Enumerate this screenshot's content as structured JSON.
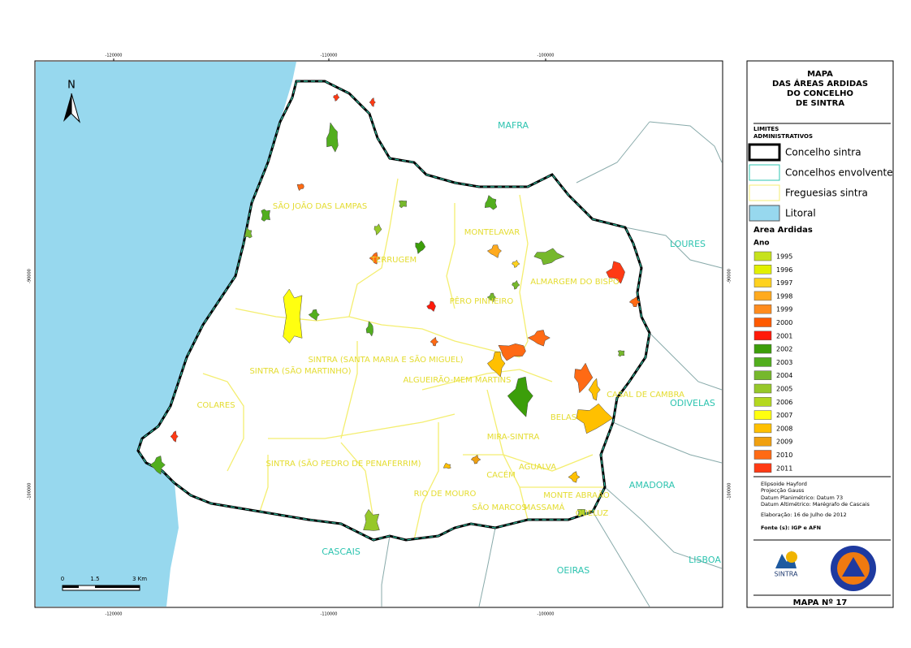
{
  "map": {
    "coords": {
      "x_labels": [
        "-120000",
        "-110000",
        "-100000"
      ],
      "y_labels": [
        "-90000",
        "-100000"
      ]
    },
    "north": "N",
    "scale": [
      "0",
      "1.5",
      "3 Km"
    ],
    "places": [
      "MAFRA",
      "LOURES",
      "ODIVELAS",
      "AMADORA",
      "OEIRAS",
      "LISBOA",
      "CASCAIS"
    ],
    "freguesias": [
      "SÃO JOÃO DAS LAMPAS",
      "TERRUGEM",
      "MONTELAVAR",
      "ALMARGEM DO BISPO",
      "PÊRO PINHEIRO",
      "SINTRA (SANTA MARIA E SÃO MIGUEL)",
      "SINTRA (SÃO MARTINHO)",
      "ALGUEIRÃO-MEM MARTINS",
      "CASAL DE CAMBRA",
      "COLARES",
      "BELAS",
      "MIRA-SINTRA",
      "SINTRA (SÃO PEDRO DE PENAFERRIM)",
      "CACÉM",
      "AGUALVA",
      "RIO DE MOURO",
      "MONTE ABRAÃO",
      "SÃO MARCOS",
      "MASSAMÁ",
      "QUELUZ"
    ]
  },
  "legend": {
    "title": [
      "MAPA",
      "DAS ÁREAS ARDIDAS",
      "DO CONCELHO",
      "DE SINTRA"
    ],
    "limits_title": [
      "LIMITES",
      "ADMINISTRATIVOS"
    ],
    "limits": [
      "Concelho sintra",
      "Concelhos envolvente",
      "Freguesias sintra",
      "Litoral"
    ],
    "areas_title": "Area Ardidas",
    "year_title": "Ano",
    "years": [
      {
        "label": "1995",
        "color": "#c6e21c"
      },
      {
        "label": "1996",
        "color": "#e2f000"
      },
      {
        "label": "1997",
        "color": "#ffd21e"
      },
      {
        "label": "1998",
        "color": "#ffaa1e"
      },
      {
        "label": "1999",
        "color": "#ff8c1e"
      },
      {
        "label": "2000",
        "color": "#ff5a00"
      },
      {
        "label": "2001",
        "color": "#ff1a0a"
      },
      {
        "label": "2002",
        "color": "#3c9e0a"
      },
      {
        "label": "2003",
        "color": "#52ae1e"
      },
      {
        "label": "2004",
        "color": "#76b82c"
      },
      {
        "label": "2005",
        "color": "#96c82a"
      },
      {
        "label": "2006",
        "color": "#b4d820"
      },
      {
        "label": "2007",
        "color": "#ffff10"
      },
      {
        "label": "2008",
        "color": "#ffc000"
      },
      {
        "label": "2009",
        "color": "#f0a010"
      },
      {
        "label": "2010",
        "color": "#ff6a14"
      },
      {
        "label": "2011",
        "color": "#ff3a14"
      }
    ],
    "info": [
      "Elipsoide Hayford",
      "Projecção Gauss",
      "Datum Planimétrico: Datum 73",
      "Datum Altimétrico: Marégrafo de Cascais",
      "Elaboração: 16 de Julho de 2012",
      "Fonte (s): IGP e AFN"
    ],
    "map_number": "MAPA Nº 17",
    "logo": "SINTRA"
  }
}
